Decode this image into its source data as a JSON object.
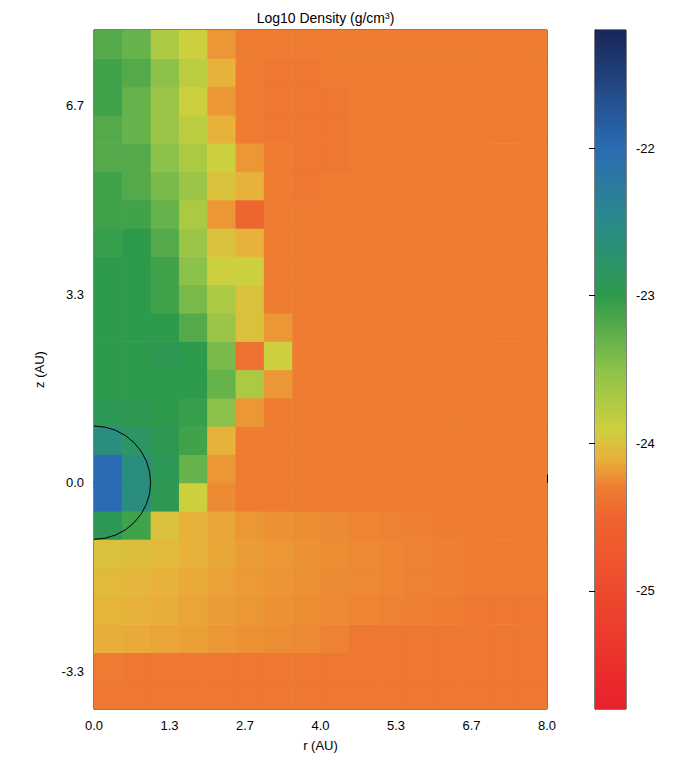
{
  "chart_data": {
    "type": "heatmap",
    "title": "Log10 Density (g/cm³)",
    "x_label": "r (AU)",
    "y_label": "z (AU)",
    "xlim": [
      0,
      8
    ],
    "ylim": [
      -4,
      8
    ],
    "xticks": [
      {
        "value": 0,
        "label": "0.0"
      },
      {
        "value": 1.333,
        "label": "1.3"
      },
      {
        "value": 2.667,
        "label": "2.7"
      },
      {
        "value": 4,
        "label": "4.0"
      },
      {
        "value": 5.333,
        "label": "5.3"
      },
      {
        "value": 6.667,
        "label": "6.7"
      },
      {
        "value": 8,
        "label": "8.0"
      }
    ],
    "yticks": [
      {
        "value": -3.333,
        "label": "-3.3"
      },
      {
        "value": 0,
        "label": "0.0"
      },
      {
        "value": 3.333,
        "label": "3.3"
      },
      {
        "value": 6.667,
        "label": "6.7"
      }
    ],
    "x": [
      0.25,
      0.75,
      1.25,
      1.75,
      2.25,
      2.75,
      3.25,
      3.75,
      4.25,
      4.75,
      5.25,
      5.75,
      6.25,
      6.75,
      7.25,
      7.75
    ],
    "y": [
      -3.75,
      -3.25,
      -2.75,
      -2.25,
      -1.75,
      -1.25,
      -0.75,
      -0.25,
      0.25,
      0.75,
      1.25,
      1.75,
      2.25,
      2.75,
      3.25,
      3.75,
      4.25,
      4.75,
      5.25,
      5.75,
      6.25,
      6.75,
      7.25,
      7.75
    ],
    "cells": [
      [
        -24.35,
        -24.35,
        -24.35,
        -24.35,
        -24.35,
        -24.35,
        -24.35,
        -24.35,
        -24.35,
        -24.35,
        -24.35,
        -24.35,
        -24.35,
        -24.35,
        -24.35,
        -24.35
      ],
      [
        -24.3,
        -24.35,
        -24.35,
        -24.35,
        -24.35,
        -24.35,
        -24.35,
        -24.35,
        -24.35,
        -24.35,
        -24.35,
        -24.35,
        -24.35,
        -24.35,
        -24.35,
        -24.35
      ],
      [
        -24.12,
        -24.13,
        -24.15,
        -24.17,
        -24.2,
        -24.22,
        -24.24,
        -24.26,
        -24.28,
        -24.35,
        -24.35,
        -24.35,
        -24.35,
        -24.35,
        -24.35,
        -24.35
      ],
      [
        -24.08,
        -24.1,
        -24.12,
        -24.15,
        -24.18,
        -24.2,
        -24.22,
        -24.24,
        -24.26,
        -24.27,
        -24.28,
        -24.29,
        -24.3,
        -24.35,
        -24.35,
        -24.35
      ],
      [
        -24.05,
        -24.07,
        -24.1,
        -24.13,
        -24.16,
        -24.19,
        -24.21,
        -24.23,
        -24.25,
        -24.26,
        -24.27,
        -24.28,
        -24.29,
        -24.3,
        -24.3,
        -24.3
      ],
      [
        -24.0,
        -24.02,
        -24.05,
        -24.1,
        -24.14,
        -24.18,
        -24.2,
        -24.22,
        -24.24,
        -24.26,
        -24.27,
        -24.28,
        -24.29,
        -24.3,
        -24.3,
        -24.3
      ],
      [
        -22.9,
        -23.1,
        -24.0,
        -24.1,
        -24.15,
        -24.2,
        -24.22,
        -24.24,
        -24.25,
        -24.27,
        -24.28,
        -24.29,
        -24.3,
        -24.3,
        -24.3,
        -24.3
      ],
      [
        -22.0,
        -22.6,
        -22.95,
        -23.9,
        -24.25,
        -24.3,
        -24.3,
        -24.3,
        -24.3,
        -24.3,
        -24.3,
        -24.3,
        -24.3,
        -24.3,
        -24.3,
        -24.3
      ],
      [
        -22.0,
        -22.6,
        -22.9,
        -23.3,
        -24.2,
        -24.3,
        -24.3,
        -24.3,
        -24.3,
        -24.3,
        -24.3,
        -24.3,
        -24.3,
        -24.3,
        -24.3,
        -24.3
      ],
      [
        -22.6,
        -22.8,
        -22.95,
        -23.1,
        -24.1,
        -24.3,
        -24.3,
        -24.3,
        -24.3,
        -24.3,
        -24.3,
        -24.3,
        -24.3,
        -24.3,
        -24.3,
        -24.3
      ],
      [
        -22.9,
        -22.95,
        -23.0,
        -23.05,
        -23.5,
        -24.2,
        -24.3,
        -24.3,
        -24.3,
        -24.3,
        -24.3,
        -24.3,
        -24.3,
        -24.3,
        -24.3,
        -24.3
      ],
      [
        -23.0,
        -23.0,
        -23.0,
        -23.0,
        -23.3,
        -23.7,
        -24.2,
        -24.3,
        -24.3,
        -24.3,
        -24.3,
        -24.3,
        -24.3,
        -24.3,
        -24.3,
        -24.3
      ],
      [
        -23.0,
        -23.0,
        -22.95,
        -23.0,
        -23.4,
        -24.4,
        -23.9,
        -24.3,
        -24.3,
        -24.3,
        -24.3,
        -24.3,
        -24.3,
        -24.3,
        -24.3,
        -24.3
      ],
      [
        -23.0,
        -23.0,
        -23.0,
        -23.2,
        -23.6,
        -24.0,
        -24.2,
        -24.3,
        -24.3,
        -24.3,
        -24.3,
        -24.3,
        -24.3,
        -24.3,
        -24.3,
        -24.3
      ],
      [
        -23.0,
        -23.0,
        -23.1,
        -23.4,
        -23.7,
        -24.0,
        -24.3,
        -24.3,
        -24.3,
        -24.3,
        -24.3,
        -24.3,
        -24.3,
        -24.3,
        -24.3,
        -24.3
      ],
      [
        -23.0,
        -23.0,
        -23.1,
        -23.5,
        -23.9,
        -23.9,
        -24.3,
        -24.3,
        -24.3,
        -24.3,
        -24.3,
        -24.3,
        -24.3,
        -24.3,
        -24.3,
        -24.3
      ],
      [
        -23.05,
        -23.0,
        -23.2,
        -23.6,
        -24.0,
        -24.1,
        -24.3,
        -24.3,
        -24.3,
        -24.3,
        -24.3,
        -24.3,
        -24.3,
        -24.3,
        -24.3,
        -24.3
      ],
      [
        -23.1,
        -23.1,
        -23.3,
        -23.7,
        -24.2,
        -24.5,
        -24.3,
        -24.3,
        -24.3,
        -24.3,
        -24.3,
        -24.3,
        -24.3,
        -24.3,
        -24.3,
        -24.3
      ],
      [
        -23.1,
        -23.2,
        -23.4,
        -23.6,
        -24.0,
        -24.1,
        -24.3,
        -24.35,
        -24.3,
        -24.3,
        -24.3,
        -24.3,
        -24.3,
        -24.3,
        -24.3,
        -24.3
      ],
      [
        -23.2,
        -23.2,
        -23.5,
        -23.7,
        -23.9,
        -24.2,
        -24.3,
        -24.35,
        -24.35,
        -24.3,
        -24.3,
        -24.3,
        -24.3,
        -24.3,
        -24.3,
        -24.3
      ],
      [
        -23.2,
        -23.3,
        -23.6,
        -23.8,
        -24.1,
        -24.3,
        -24.35,
        -24.35,
        -24.35,
        -24.3,
        -24.3,
        -24.3,
        -24.3,
        -24.3,
        -24.3,
        -24.3
      ],
      [
        -23.1,
        -23.3,
        -23.6,
        -23.9,
        -24.2,
        -24.3,
        -24.35,
        -24.35,
        -24.35,
        -24.3,
        -24.3,
        -24.3,
        -24.3,
        -24.3,
        -24.3,
        -24.3
      ],
      [
        -23.1,
        -23.2,
        -23.5,
        -23.8,
        -24.1,
        -24.3,
        -24.35,
        -24.35,
        -24.3,
        -24.3,
        -24.3,
        -24.3,
        -24.3,
        -24.3,
        -24.3,
        -24.3
      ],
      [
        -23.2,
        -23.3,
        -23.7,
        -23.9,
        -24.2,
        -24.3,
        -24.3,
        -24.3,
        -24.3,
        -24.3,
        -24.3,
        -24.3,
        -24.3,
        -24.3,
        -24.3,
        -24.3
      ]
    ],
    "colorbar": {
      "range": [
        -25.8,
        -21.2
      ],
      "ticks": [
        -25,
        -24,
        -23,
        -22
      ]
    },
    "circle": {
      "center": [
        0,
        0
      ],
      "radius": 1
    }
  }
}
